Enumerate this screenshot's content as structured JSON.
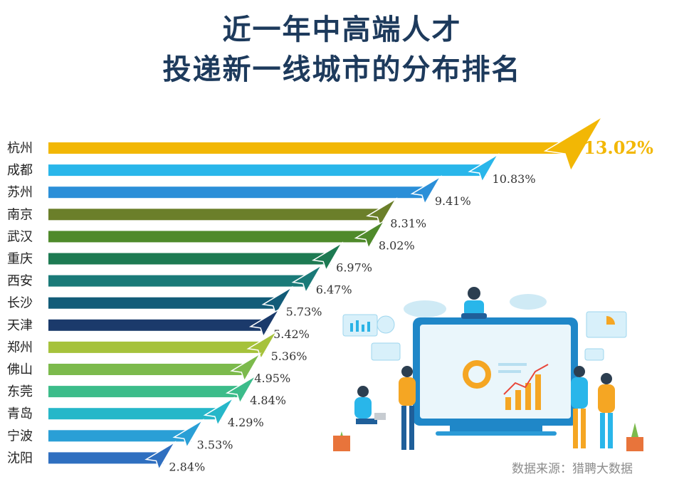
{
  "title_line1": "近一年中高端人才",
  "title_line2": "投递新一线城市的分布排名",
  "source": "数据来源：猎聘大数据",
  "chart_data": {
    "type": "bar",
    "orientation": "horizontal",
    "title": "近一年中高端人才投递新一线城市的分布排名",
    "categories": [
      "杭州",
      "成都",
      "苏州",
      "南京",
      "武汉",
      "重庆",
      "西安",
      "长沙",
      "天津",
      "郑州",
      "佛山",
      "东莞",
      "青岛",
      "宁波",
      "沈阳"
    ],
    "values": [
      13.02,
      10.83,
      9.41,
      8.31,
      8.02,
      6.97,
      6.47,
      5.73,
      5.42,
      5.36,
      4.95,
      4.84,
      4.29,
      3.53,
      2.84
    ],
    "value_labels": [
      "13.02%",
      "10.83%",
      "9.41%",
      "8.31%",
      "8.02%",
      "6.97%",
      "6.47%",
      "5.73%",
      "5.42%",
      "5.36%",
      "4.95%",
      "4.84%",
      "4.29%",
      "3.53%",
      "2.84%"
    ],
    "colors": [
      "#f2b705",
      "#29b6ea",
      "#2b8fd8",
      "#6b7f2a",
      "#4f8a2b",
      "#1d7a52",
      "#1a7a78",
      "#125c78",
      "#1b3a6b",
      "#a6c23b",
      "#7cba4c",
      "#3cbc8a",
      "#26b7c9",
      "#2a9fd6",
      "#2f6fc0"
    ],
    "xlim": [
      0,
      13.02
    ],
    "grid": false,
    "legend": "none"
  }
}
